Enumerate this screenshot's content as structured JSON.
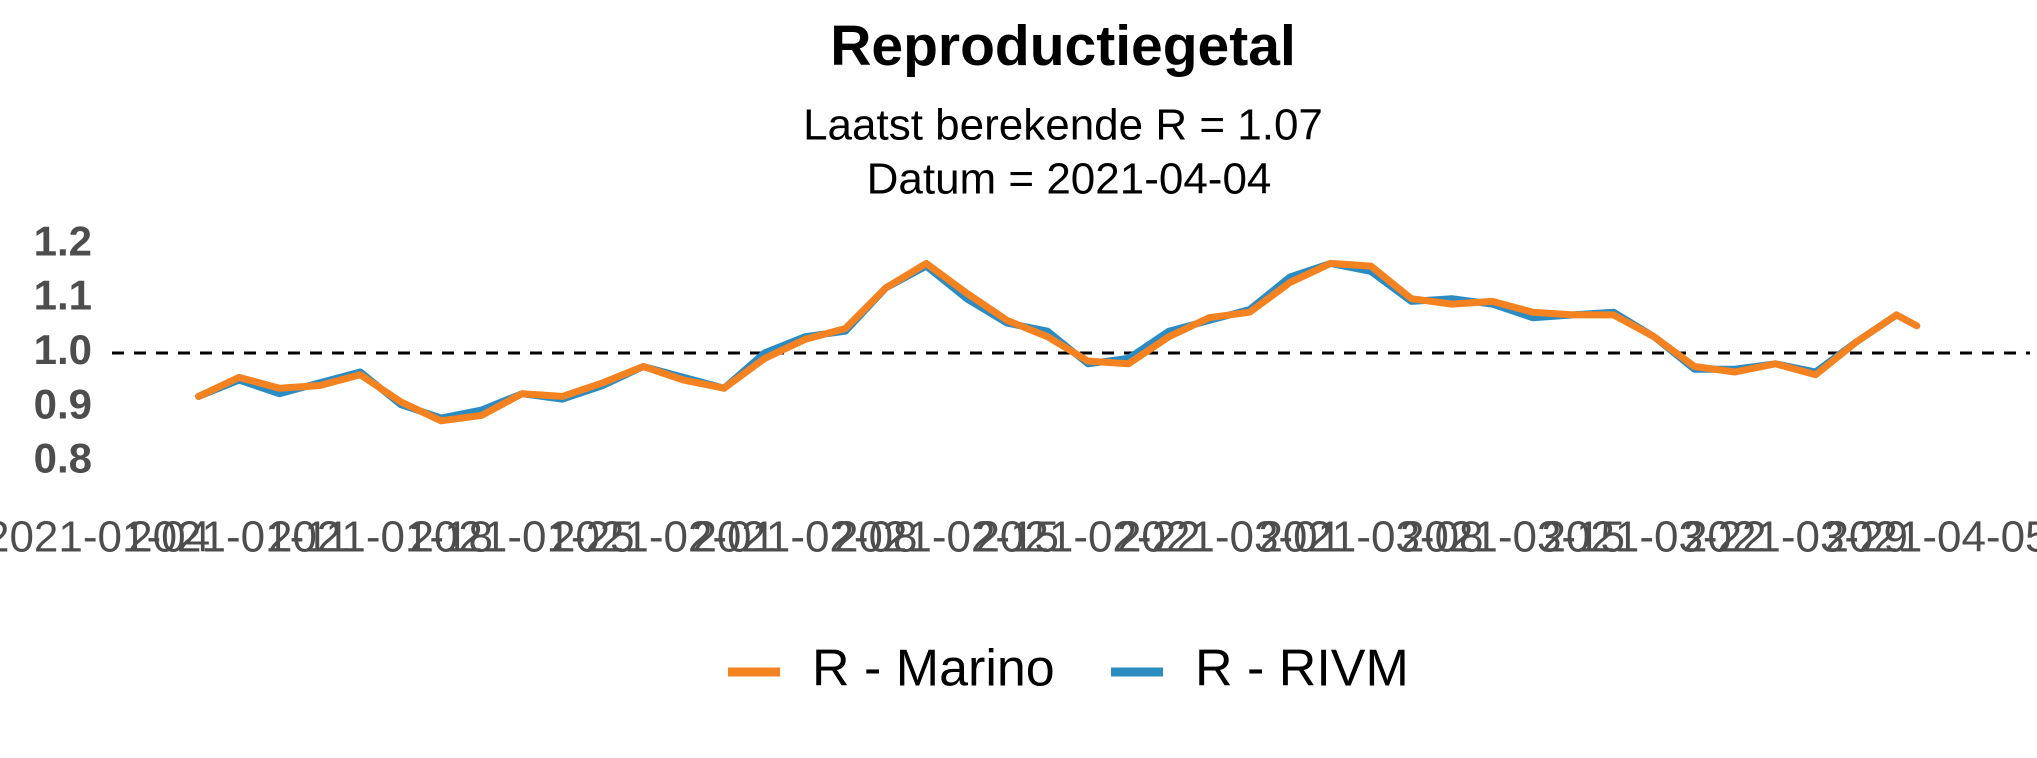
{
  "chart_data": {
    "type": "line",
    "title": "Reproductiegetal",
    "subtitle": [
      "Laatst berekende R = 1.07",
      "Datum = 2021-04-04"
    ],
    "x": [
      "2021-01-09",
      "2021-01-11",
      "2021-01-13",
      "2021-01-15",
      "2021-01-17",
      "2021-01-19",
      "2021-01-21",
      "2021-01-23",
      "2021-01-25",
      "2021-01-27",
      "2021-01-29",
      "2021-01-31",
      "2021-02-02",
      "2021-02-04",
      "2021-02-06",
      "2021-02-08",
      "2021-02-10",
      "2021-02-12",
      "2021-02-14",
      "2021-02-16",
      "2021-02-18",
      "2021-02-20",
      "2021-02-22",
      "2021-02-24",
      "2021-02-26",
      "2021-02-28",
      "2021-03-02",
      "2021-03-04",
      "2021-03-06",
      "2021-03-08",
      "2021-03-10",
      "2021-03-12",
      "2021-03-14",
      "2021-03-16",
      "2021-03-18",
      "2021-03-20",
      "2021-03-22",
      "2021-03-24",
      "2021-03-26",
      "2021-03-28",
      "2021-03-30",
      "2021-04-01",
      "2021-04-03",
      "2021-04-04"
    ],
    "series": [
      {
        "name": "R - RIVM",
        "color": "#2b8cc4",
        "values": [
          0.92,
          0.95,
          0.925,
          0.945,
          0.965,
          0.905,
          0.88,
          0.895,
          0.925,
          0.915,
          0.94,
          0.975,
          0.955,
          0.935,
          1.0,
          1.03,
          1.04,
          1.12,
          1.16,
          1.1,
          1.055,
          1.04,
          0.98,
          0.99,
          1.04,
          1.06,
          1.08,
          1.14,
          1.165,
          1.15,
          1.095,
          1.1,
          1.09,
          1.065,
          1.07,
          1.075,
          1.03,
          0.97,
          0.97,
          0.98,
          0.965,
          1.02,
          1.07,
          null
        ]
      },
      {
        "name": "R - Marino",
        "color": "#f58220",
        "values": [
          0.92,
          0.955,
          0.935,
          0.94,
          0.96,
          0.91,
          0.875,
          0.885,
          0.925,
          0.92,
          0.945,
          0.975,
          0.95,
          0.935,
          0.99,
          1.025,
          1.045,
          1.12,
          1.165,
          1.11,
          1.06,
          1.03,
          0.985,
          0.98,
          1.03,
          1.065,
          1.075,
          1.13,
          1.165,
          1.16,
          1.1,
          1.09,
          1.095,
          1.075,
          1.07,
          1.07,
          1.03,
          0.975,
          0.965,
          0.98,
          0.96,
          1.02,
          1.07,
          1.05
        ]
      }
    ],
    "legend_order": [
      1,
      0
    ],
    "reference_line": 1.0,
    "xlim": [
      "2021-01-04",
      "2021-04-05"
    ],
    "xticks": [
      "2021-01-04",
      "2021-01-11",
      "2021-01-18",
      "2021-01-25",
      "2021-02-01",
      "2021-02-08",
      "2021-02-15",
      "2021-02-22",
      "2021-03-01",
      "2021-03-08",
      "2021-03-15",
      "2021-03-22",
      "2021-03-29",
      "2021-04-05"
    ],
    "ylim": [
      0.78,
      1.22
    ],
    "yticks": [
      0.8,
      0.9,
      {
        "value": 1.0,
        "label": "1.0"
      },
      1.1,
      1.2
    ]
  }
}
